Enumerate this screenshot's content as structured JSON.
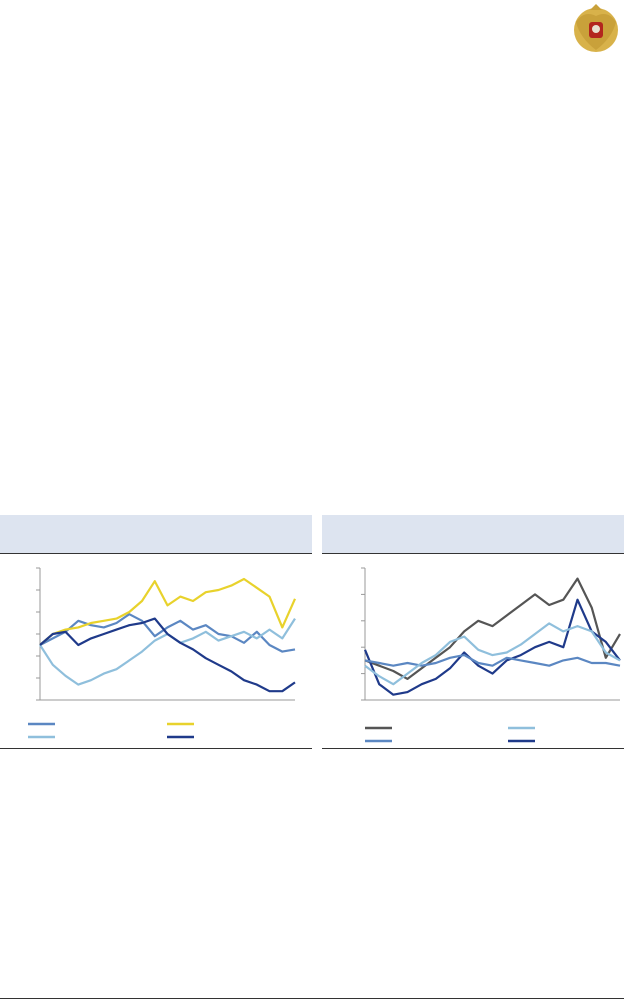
{
  "chart_data": [
    {
      "type": "line",
      "ylim": [
        0,
        6
      ],
      "yticks": [
        0,
        1,
        2,
        3,
        4,
        5,
        6
      ],
      "series": [
        {
          "color": "#5b87c2",
          "values": [
            2.5,
            2.8,
            3.1,
            3.6,
            3.4,
            3.3,
            3.5,
            3.9,
            3.6,
            2.9,
            3.3,
            3.6,
            3.2,
            3.4,
            3.0,
            2.9,
            2.6,
            3.1,
            2.5,
            2.2,
            2.3
          ]
        },
        {
          "color": "#e8d22c",
          "values": [
            2.5,
            3.0,
            3.2,
            3.3,
            3.5,
            3.6,
            3.7,
            4.0,
            4.5,
            5.4,
            4.3,
            4.7,
            4.5,
            4.9,
            5.0,
            5.2,
            5.5,
            5.1,
            4.7,
            3.3,
            4.6
          ]
        },
        {
          "color": "#8fbfdc",
          "values": [
            2.5,
            1.6,
            1.1,
            0.7,
            0.9,
            1.2,
            1.4,
            1.8,
            2.2,
            2.7,
            3.0,
            2.6,
            2.8,
            3.1,
            2.7,
            2.9,
            3.1,
            2.8,
            3.2,
            2.8,
            3.7
          ]
        },
        {
          "color": "#1f3a8a",
          "values": [
            2.5,
            3.0,
            3.1,
            2.5,
            2.8,
            3.0,
            3.2,
            3.4,
            3.5,
            3.7,
            3.0,
            2.6,
            2.3,
            1.9,
            1.6,
            1.3,
            0.9,
            0.7,
            0.4,
            0.4,
            0.8
          ]
        }
      ]
    },
    {
      "type": "line",
      "ylim": [
        0,
        5
      ],
      "yticks": [
        0,
        1,
        2,
        3,
        4,
        5
      ],
      "series": [
        {
          "color": "#555555",
          "values": [
            1.5,
            1.3,
            1.1,
            0.8,
            1.2,
            1.6,
            2.0,
            2.6,
            3.0,
            2.8,
            3.2,
            3.6,
            4.0,
            3.6,
            3.8,
            4.6,
            3.5,
            1.6,
            2.5
          ]
        },
        {
          "color": "#1f3a8a",
          "values": [
            1.9,
            0.6,
            0.2,
            0.3,
            0.6,
            0.8,
            1.2,
            1.8,
            1.3,
            1.0,
            1.5,
            1.7,
            2.0,
            2.2,
            2.0,
            3.8,
            2.6,
            2.2,
            1.5
          ]
        },
        {
          "color": "#5b87c2",
          "values": [
            1.5,
            1.4,
            1.3,
            1.4,
            1.3,
            1.4,
            1.6,
            1.7,
            1.4,
            1.3,
            1.6,
            1.5,
            1.4,
            1.3,
            1.5,
            1.6,
            1.4,
            1.4,
            1.3
          ]
        },
        {
          "color": "#8fbfdc",
          "values": [
            1.3,
            0.9,
            0.6,
            1.0,
            1.4,
            1.7,
            2.2,
            2.4,
            1.9,
            1.7,
            1.8,
            2.1,
            2.5,
            2.9,
            2.6,
            2.8,
            2.6,
            1.8,
            1.5
          ]
        }
      ]
    }
  ]
}
